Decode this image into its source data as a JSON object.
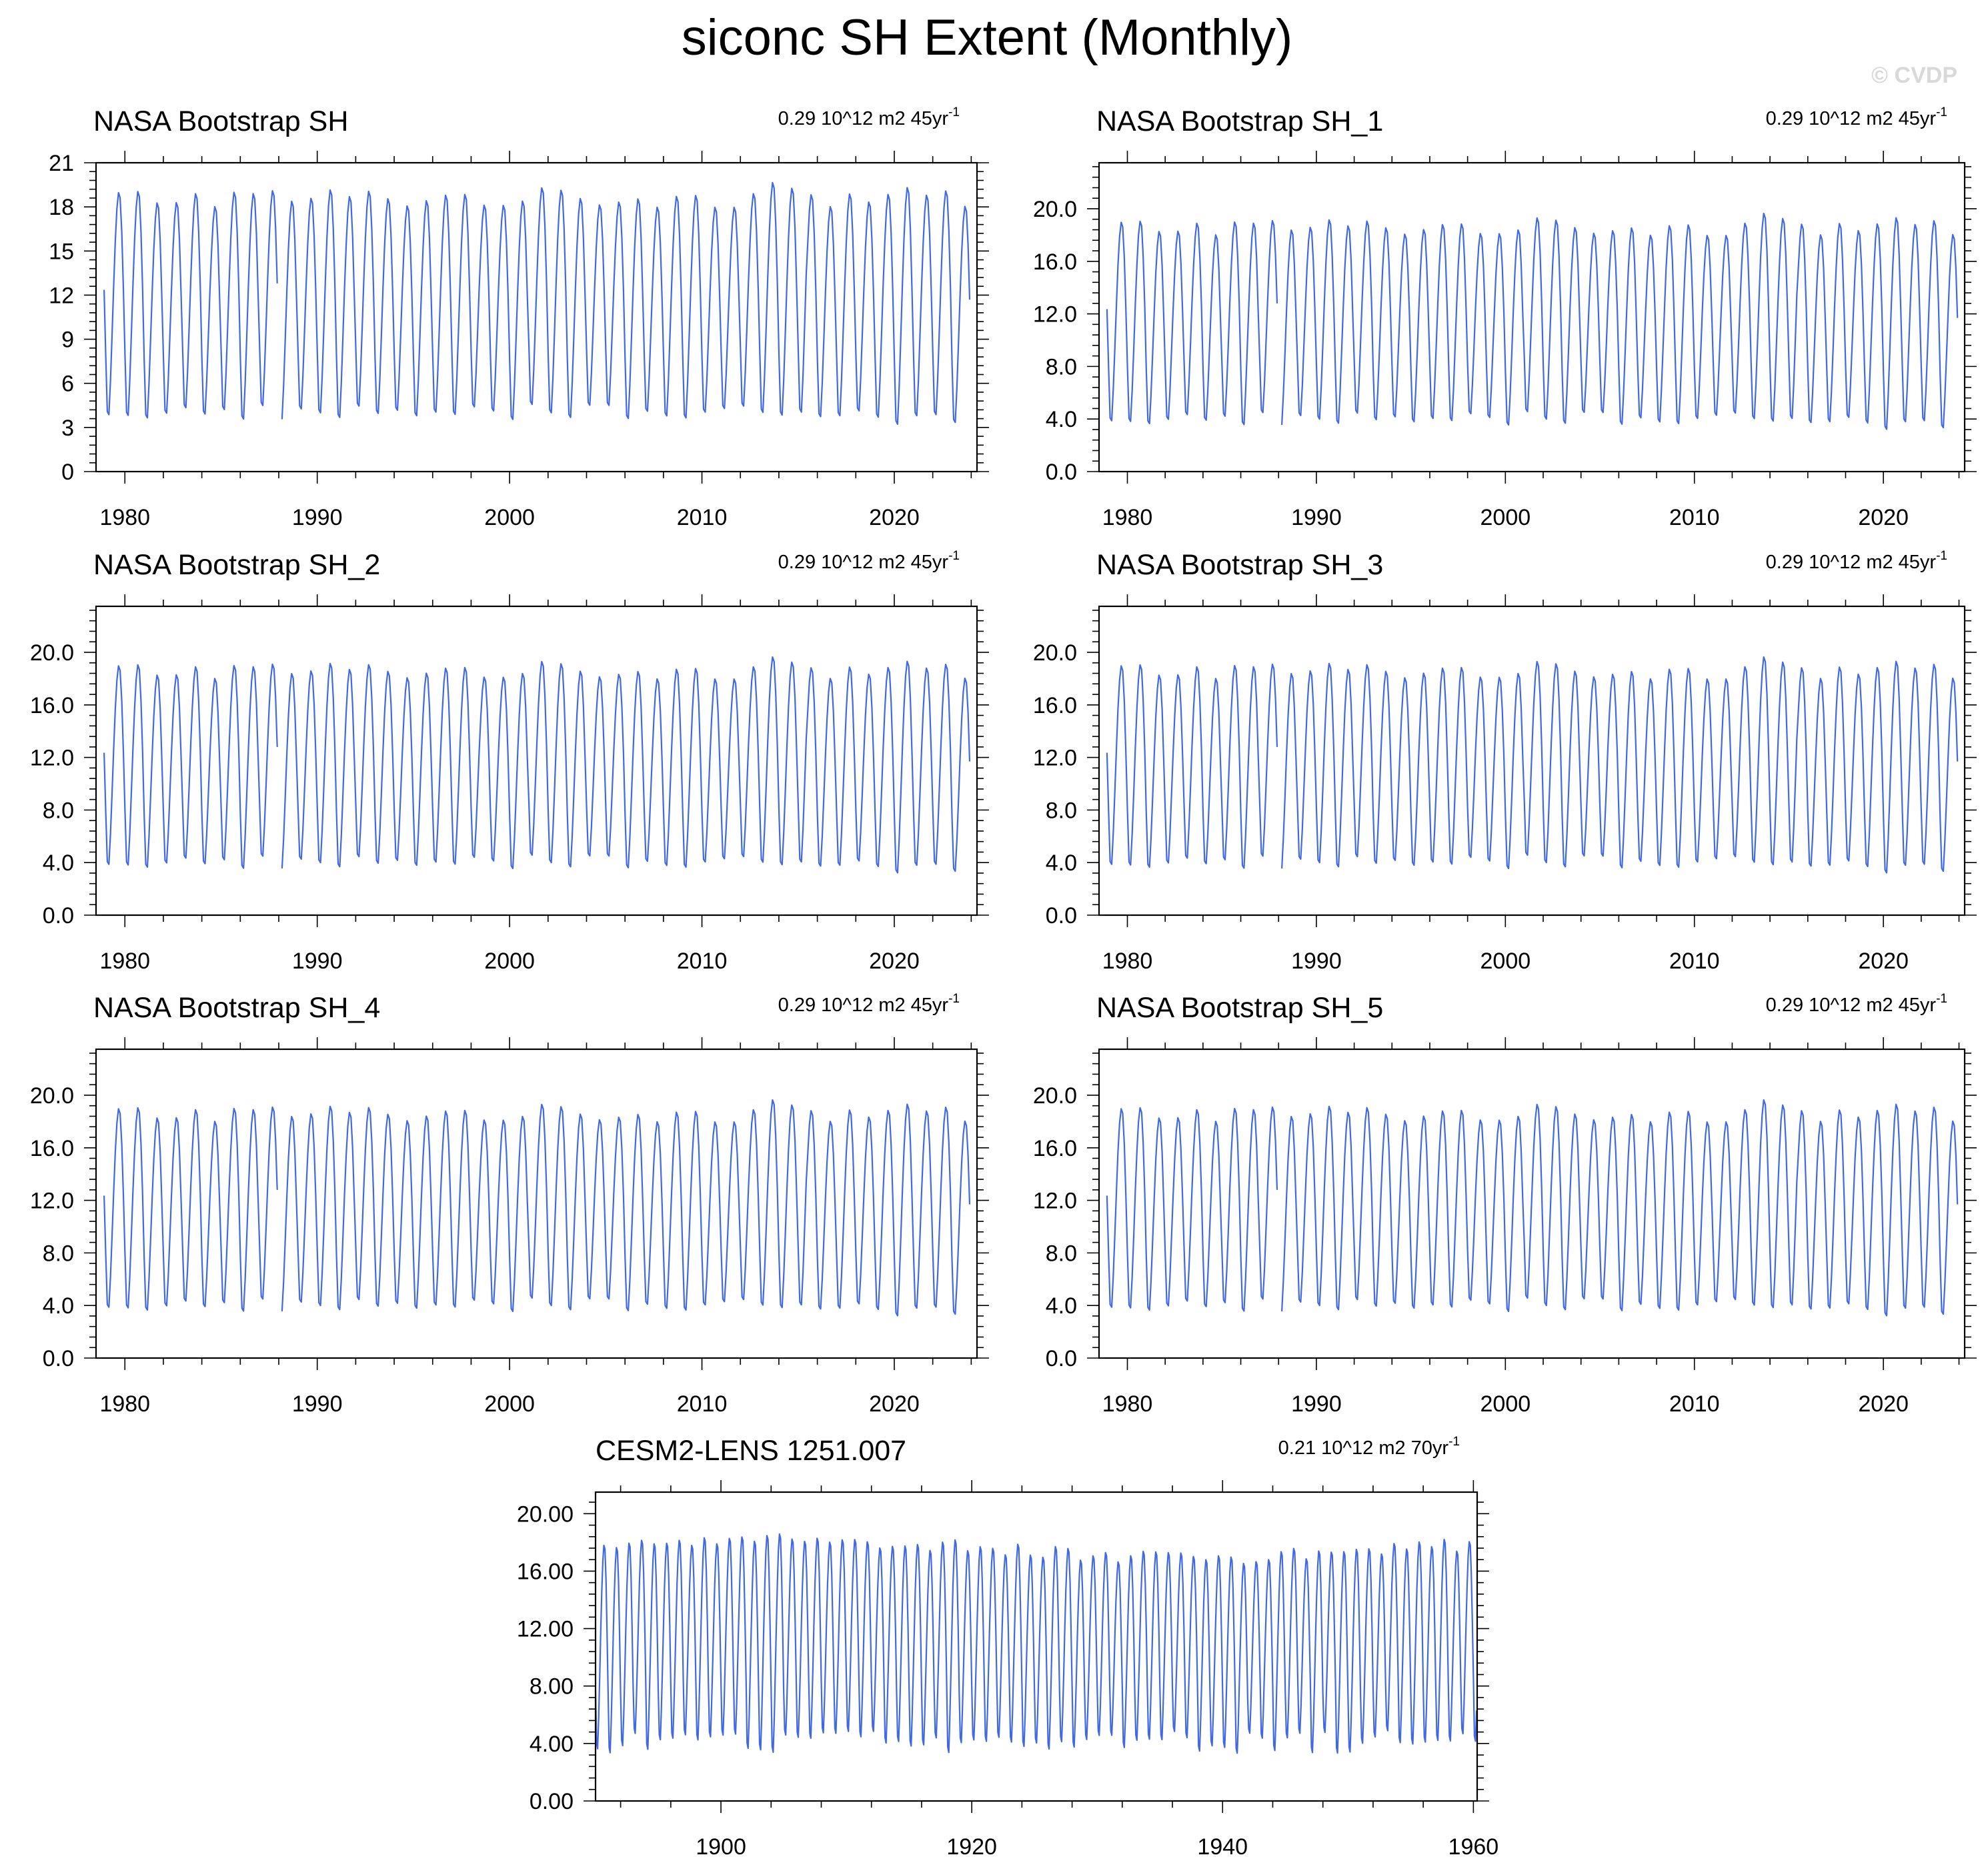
{
  "figure": {
    "title": "siconc SH Extent (Monthly)",
    "watermark": "© CVDP",
    "line_color": "#4169e1"
  },
  "chart_data": [
    {
      "type": "line",
      "title": "NASA Bootstrap SH",
      "trend_value": "0.29 10^12 m2 45yr",
      "trend_exp": "-1",
      "xlim": [
        1978.5,
        2024.3
      ],
      "ylim": [
        0,
        21
      ],
      "xticks": [
        1980,
        1990,
        2000,
        2010,
        2020
      ],
      "xtick_labels": [
        "1980",
        "1990",
        "2000",
        "2010",
        "2020"
      ],
      "yticks": [
        0,
        3,
        6,
        9,
        12,
        15,
        18,
        21
      ],
      "ytick_labels": [
        "0",
        "3",
        "6",
        "9",
        "12",
        "15",
        "18",
        "21"
      ],
      "series": [
        {
          "name": "NASA Bootstrap SH",
          "start_year": 1978.92,
          "end_year": 2023.92,
          "gap": [
            1987.92,
            1988.0
          ]
        }
      ]
    },
    {
      "type": "line",
      "title": "NASA Bootstrap SH_1",
      "trend_value": "0.29 10^12 m2 45yr",
      "trend_exp": "-1",
      "xlim": [
        1978.5,
        2024.3
      ],
      "ylim": [
        0,
        23.5
      ],
      "xticks": [
        1980,
        1990,
        2000,
        2010,
        2020
      ],
      "xtick_labels": [
        "1980",
        "1990",
        "2000",
        "2010",
        "2020"
      ],
      "yticks": [
        0,
        4,
        8,
        12,
        16,
        20
      ],
      "ytick_labels": [
        "0.0",
        "4.0",
        "8.0",
        "12.0",
        "16.0",
        "20.0"
      ],
      "series": [
        {
          "name": "NASA Bootstrap SH_1",
          "start_year": 1978.92,
          "end_year": 2023.92,
          "gap": [
            1987.92,
            1988.0
          ]
        }
      ]
    },
    {
      "type": "line",
      "title": "NASA Bootstrap SH_2",
      "trend_value": "0.29 10^12 m2 45yr",
      "trend_exp": "-1",
      "xlim": [
        1978.5,
        2024.3
      ],
      "ylim": [
        0,
        23.5
      ],
      "xticks": [
        1980,
        1990,
        2000,
        2010,
        2020
      ],
      "xtick_labels": [
        "1980",
        "1990",
        "2000",
        "2010",
        "2020"
      ],
      "yticks": [
        0,
        4,
        8,
        12,
        16,
        20
      ],
      "ytick_labels": [
        "0.0",
        "4.0",
        "8.0",
        "12.0",
        "16.0",
        "20.0"
      ],
      "series": [
        {
          "name": "NASA Bootstrap SH_2",
          "start_year": 1978.92,
          "end_year": 2023.92,
          "gap": [
            1987.92,
            1988.0
          ]
        }
      ]
    },
    {
      "type": "line",
      "title": "NASA Bootstrap SH_3",
      "trend_value": "0.29 10^12 m2 45yr",
      "trend_exp": "-1",
      "xlim": [
        1978.5,
        2024.3
      ],
      "ylim": [
        0,
        23.5
      ],
      "xticks": [
        1980,
        1990,
        2000,
        2010,
        2020
      ],
      "xtick_labels": [
        "1980",
        "1990",
        "2000",
        "2010",
        "2020"
      ],
      "yticks": [
        0,
        4,
        8,
        12,
        16,
        20
      ],
      "ytick_labels": [
        "0.0",
        "4.0",
        "8.0",
        "12.0",
        "16.0",
        "20.0"
      ],
      "series": [
        {
          "name": "NASA Bootstrap SH_3",
          "start_year": 1978.92,
          "end_year": 2023.92,
          "gap": [
            1987.92,
            1988.0
          ]
        }
      ]
    },
    {
      "type": "line",
      "title": "NASA Bootstrap SH_4",
      "trend_value": "0.29 10^12 m2 45yr",
      "trend_exp": "-1",
      "xlim": [
        1978.5,
        2024.3
      ],
      "ylim": [
        0,
        23.5
      ],
      "xticks": [
        1980,
        1990,
        2000,
        2010,
        2020
      ],
      "xtick_labels": [
        "1980",
        "1990",
        "2000",
        "2010",
        "2020"
      ],
      "yticks": [
        0,
        4,
        8,
        12,
        16,
        20
      ],
      "ytick_labels": [
        "0.0",
        "4.0",
        "8.0",
        "12.0",
        "16.0",
        "20.0"
      ],
      "series": [
        {
          "name": "NASA Bootstrap SH_4",
          "start_year": 1978.92,
          "end_year": 2023.92,
          "gap": [
            1987.92,
            1988.0
          ]
        }
      ]
    },
    {
      "type": "line",
      "title": "NASA Bootstrap SH_5",
      "trend_value": "0.29 10^12 m2 45yr",
      "trend_exp": "-1",
      "xlim": [
        1978.5,
        2024.3
      ],
      "ylim": [
        0,
        23.5
      ],
      "xticks": [
        1980,
        1990,
        2000,
        2010,
        2020
      ],
      "xtick_labels": [
        "1980",
        "1990",
        "2000",
        "2010",
        "2020"
      ],
      "yticks": [
        0,
        4,
        8,
        12,
        16,
        20
      ],
      "ytick_labels": [
        "0.0",
        "4.0",
        "8.0",
        "12.0",
        "16.0",
        "20.0"
      ],
      "series": [
        {
          "name": "NASA Bootstrap SH_5",
          "start_year": 1978.92,
          "end_year": 2023.92,
          "gap": [
            1987.92,
            1988.0
          ]
        }
      ]
    },
    {
      "type": "line",
      "title": "CESM2-LENS 1251.007",
      "trend_value": "0.21 10^12 m2 70yr",
      "trend_exp": "-1",
      "xlim": [
        1890,
        1960.3
      ],
      "ylim": [
        0,
        21.5
      ],
      "xticks": [
        1900,
        1920,
        1940,
        1960
      ],
      "xtick_labels": [
        "1900",
        "1920",
        "1940",
        "1960"
      ],
      "yticks": [
        0,
        4,
        8,
        12,
        16,
        20
      ],
      "ytick_labels": [
        "0.00",
        "4.00",
        "8.00",
        "12.00",
        "16.00",
        "20.00"
      ],
      "series": [
        {
          "name": "CESM2-LENS 1251.007",
          "start_year": 1890.0,
          "end_year": 1960.3
        }
      ]
    }
  ]
}
